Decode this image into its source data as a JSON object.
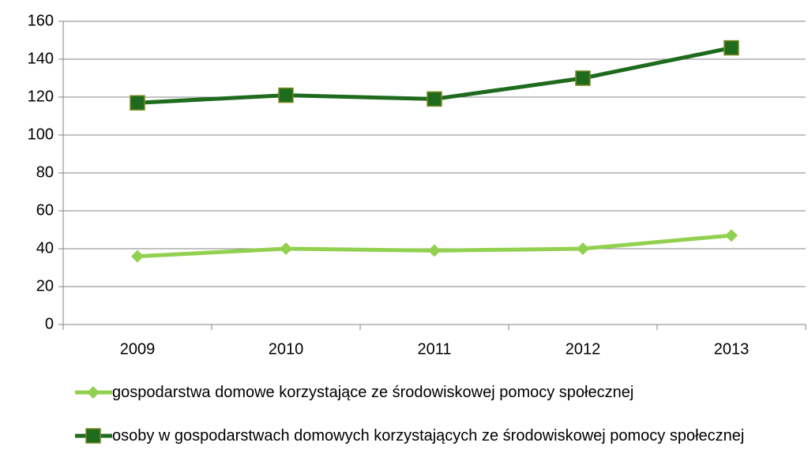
{
  "chart_data": {
    "type": "line",
    "categories": [
      "2009",
      "2010",
      "2011",
      "2012",
      "2013"
    ],
    "series": [
      {
        "name": "gospodarstwa domowe korzystające ze środowiskowej pomocy społecznej",
        "color": "#92d050",
        "marker": "diamond",
        "values": [
          36,
          40,
          39,
          40,
          47
        ]
      },
      {
        "name": "osoby w gospodarstwach domowych korzystających ze środowiskowej pomocy społecznej",
        "color": "#1e6b1e",
        "marker": "square",
        "values": [
          117,
          121,
          119,
          130,
          146
        ]
      }
    ],
    "ylim": [
      0,
      160
    ],
    "yticks": [
      0,
      20,
      40,
      60,
      80,
      100,
      120,
      140,
      160
    ],
    "grid": true,
    "legend": "bottom"
  }
}
